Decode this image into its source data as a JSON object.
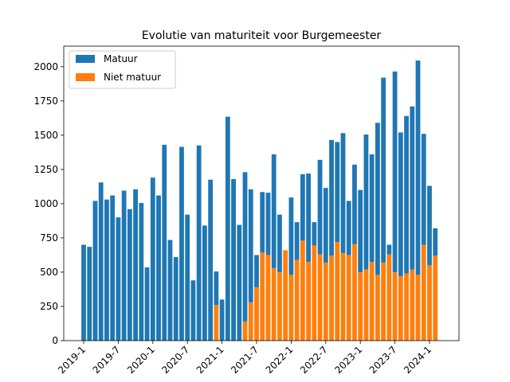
{
  "chart_data": {
    "type": "bar",
    "stacked": true,
    "title": "Evolutie van maturiteit voor Burgemeester",
    "xlabel": "",
    "ylabel": "",
    "ylim": [
      0,
      2150
    ],
    "yticks": [
      0,
      250,
      500,
      750,
      1000,
      1250,
      1500,
      1750,
      2000
    ],
    "xtick_labels": [
      "2019-1",
      "2019-7",
      "2020-1",
      "2020-7",
      "2021-1",
      "2021-7",
      "2022-1",
      "2022-7",
      "2023-1",
      "2023-7",
      "2024-1"
    ],
    "xtick_month_index": [
      0,
      6,
      12,
      18,
      24,
      30,
      36,
      42,
      48,
      54,
      60
    ],
    "legend_position": "top-left",
    "categories": [
      "2019-1",
      "2019-2",
      "2019-3",
      "2019-4",
      "2019-5",
      "2019-6",
      "2019-7",
      "2019-8",
      "2019-9",
      "2019-10",
      "2019-11",
      "2019-12",
      "2020-1",
      "2020-2",
      "2020-3",
      "2020-4",
      "2020-5",
      "2020-6",
      "2020-7",
      "2020-8",
      "2020-9",
      "2020-10",
      "2020-11",
      "2020-12",
      "2021-1",
      "2021-2",
      "2021-3",
      "2021-4",
      "2021-5",
      "2021-6",
      "2021-7",
      "2021-8",
      "2021-9",
      "2021-10",
      "2021-11",
      "2021-12",
      "2022-1",
      "2022-2",
      "2022-3",
      "2022-4",
      "2022-5",
      "2022-6",
      "2022-7",
      "2022-8",
      "2022-9",
      "2022-10",
      "2022-11",
      "2022-12",
      "2023-1",
      "2023-2",
      "2023-3",
      "2023-4",
      "2023-5",
      "2023-6",
      "2023-7",
      "2023-8",
      "2023-9",
      "2023-10",
      "2023-11",
      "2023-12",
      "2024-1",
      "2024-2"
    ],
    "series": [
      {
        "name": "Niet matuur",
        "color": "#ff7f0e",
        "values": [
          0,
          0,
          0,
          0,
          0,
          0,
          0,
          0,
          0,
          0,
          0,
          0,
          0,
          0,
          0,
          0,
          0,
          0,
          0,
          0,
          0,
          0,
          0,
          260,
          0,
          0,
          0,
          0,
          140,
          280,
          390,
          645,
          625,
          530,
          500,
          660,
          480,
          590,
          730,
          575,
          695,
          630,
          570,
          620,
          720,
          640,
          625,
          705,
          500,
          520,
          575,
          480,
          570,
          630,
          500,
          470,
          490,
          520,
          480,
          700,
          550,
          620
        ]
      },
      {
        "name": "Matuur",
        "color": "#1f77b4",
        "values": [
          700,
          685,
          1020,
          1155,
          1030,
          1060,
          900,
          1095,
          960,
          1105,
          1005,
          535,
          1190,
          1060,
          1430,
          735,
          610,
          1415,
          920,
          440,
          1425,
          840,
          1175,
          245,
          300,
          1635,
          1180,
          845,
          1090,
          825,
          235,
          440,
          455,
          830,
          420,
          0,
          565,
          275,
          485,
          645,
          170,
          690,
          545,
          845,
          730,
          875,
          395,
          580,
          600,
          985,
          785,
          1110,
          1350,
          70,
          1465,
          1050,
          1150,
          1190,
          1565,
          810,
          580,
          200
        ]
      }
    ]
  }
}
